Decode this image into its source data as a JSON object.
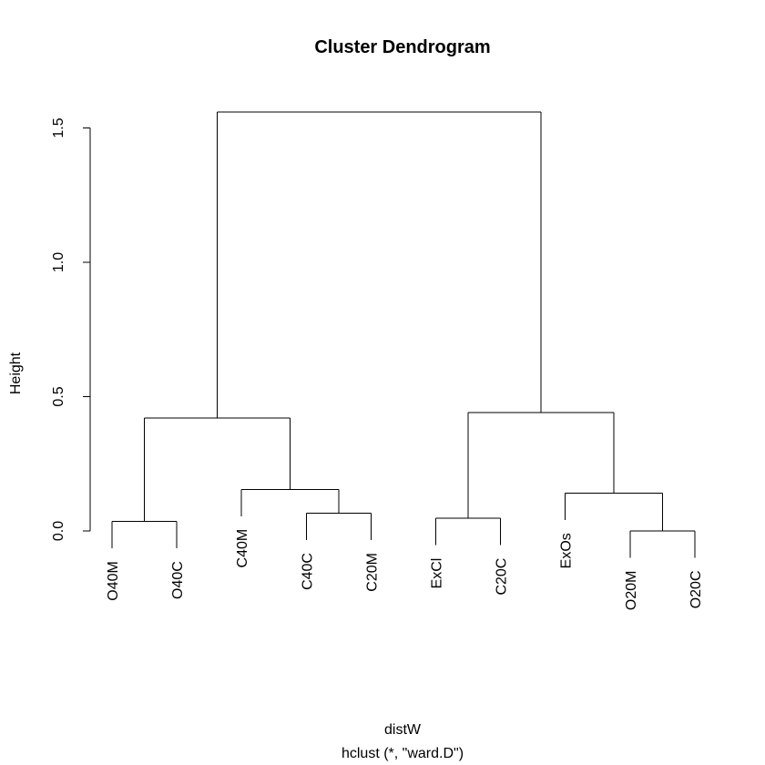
{
  "chart_data": {
    "type": "dendrogram",
    "title": "Cluster Dendrogram",
    "ylabel": "Height",
    "xlabel": "distW",
    "subtitle": "hclust (*, \"ward.D\")",
    "ylim": [
      0,
      1.6
    ],
    "y_ticks": [
      0.0,
      0.5,
      1.0,
      1.5
    ],
    "y_tick_labels": [
      "0.0",
      "0.5",
      "1.0",
      "1.5"
    ],
    "leaves": [
      "O40M",
      "O40C",
      "C40M",
      "C40C",
      "C20M",
      "ExCl",
      "C20C",
      "ExOs",
      "O20M",
      "O20C"
    ],
    "merges": [
      {
        "children": [
          "O20M",
          "O20C"
        ],
        "height": 0.0
      },
      {
        "children": [
          "O40M",
          "O40C"
        ],
        "height": 0.035
      },
      {
        "children": [
          "ExCl",
          "C20C"
        ],
        "height": 0.047
      },
      {
        "children": [
          "C40C",
          "C20M"
        ],
        "height": 0.066
      },
      {
        "children": [
          "ExOs",
          "O20M+O20C"
        ],
        "height": 0.14
      },
      {
        "children": [
          "C40M",
          "C40C+C20M"
        ],
        "height": 0.155
      },
      {
        "children": [
          "O40M+O40C",
          "C40M+C40C+C20M"
        ],
        "height": 0.42
      },
      {
        "children": [
          "ExCl+C20C",
          "ExOs+O20M+O20C"
        ],
        "height": 0.44
      },
      {
        "children": [
          "left-cluster",
          "right-cluster"
        ],
        "height": 1.56
      }
    ]
  }
}
